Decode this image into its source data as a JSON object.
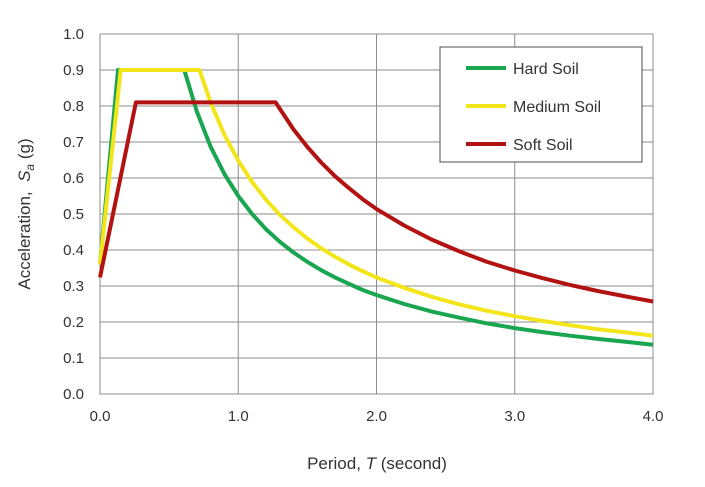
{
  "chart_data": {
    "type": "line",
    "xlabel": {
      "prefix": "Period, ",
      "symbol": "T",
      "suffix": " (second)"
    },
    "ylabel": {
      "prefix": "Acceleration,  ",
      "symbol": "S",
      "subscript": "a",
      "suffix": " (g)"
    },
    "xlim": [
      0,
      4
    ],
    "ylim": [
      0,
      1
    ],
    "x_ticks": [
      0,
      1,
      2,
      3,
      4
    ],
    "x_tick_labels": [
      "0.0",
      "1.0",
      "2.0",
      "3.0",
      "4.0"
    ],
    "y_ticks": [
      0,
      0.1,
      0.2,
      0.3,
      0.4,
      0.5,
      0.6,
      0.7,
      0.8,
      0.9,
      1.0
    ],
    "y_tick_labels": [
      "0.0",
      "0.1",
      "0.2",
      "0.3",
      "0.4",
      "0.5",
      "0.6",
      "0.7",
      "0.8",
      "0.9",
      "1.0"
    ],
    "grid": true,
    "legend_position": "top-right",
    "series": [
      {
        "name": "Hard Soil",
        "color": "#1aa650",
        "x": [
          0,
          0.13,
          0.61,
          0.7,
          0.8,
          0.9,
          1.0,
          1.1,
          1.2,
          1.3,
          1.4,
          1.5,
          1.6,
          1.7,
          1.8,
          1.9,
          2.0,
          2.2,
          2.4,
          2.6,
          2.8,
          3.0,
          3.2,
          3.4,
          3.6,
          3.8,
          4.0
        ],
        "y": [
          0.36,
          0.9,
          0.9,
          0.785,
          0.687,
          0.611,
          0.55,
          0.5,
          0.458,
          0.423,
          0.393,
          0.367,
          0.344,
          0.324,
          0.306,
          0.289,
          0.275,
          0.25,
          0.229,
          0.212,
          0.196,
          0.183,
          0.172,
          0.162,
          0.153,
          0.145,
          0.137
        ]
      },
      {
        "name": "Medium Soil",
        "color": "#f2e61a",
        "x": [
          0,
          0.15,
          0.72,
          0.8,
          0.9,
          1.0,
          1.1,
          1.2,
          1.3,
          1.4,
          1.5,
          1.6,
          1.7,
          1.8,
          1.9,
          2.0,
          2.2,
          2.4,
          2.6,
          2.8,
          3.0,
          3.2,
          3.4,
          3.6,
          3.8,
          4.0
        ],
        "y": [
          0.36,
          0.9,
          0.9,
          0.81,
          0.72,
          0.648,
          0.589,
          0.54,
          0.498,
          0.463,
          0.432,
          0.405,
          0.381,
          0.36,
          0.341,
          0.324,
          0.295,
          0.27,
          0.249,
          0.231,
          0.216,
          0.203,
          0.191,
          0.18,
          0.171,
          0.162
        ]
      },
      {
        "name": "Soft Soil",
        "color": "#b31212",
        "x": [
          0,
          0.26,
          1.27,
          1.4,
          1.5,
          1.6,
          1.7,
          1.8,
          1.9,
          2.0,
          2.2,
          2.4,
          2.6,
          2.8,
          3.0,
          3.2,
          3.4,
          3.6,
          3.8,
          4.0
        ],
        "y": [
          0.324,
          0.81,
          0.81,
          0.735,
          0.686,
          0.643,
          0.605,
          0.572,
          0.541,
          0.514,
          0.468,
          0.429,
          0.396,
          0.367,
          0.343,
          0.322,
          0.303,
          0.286,
          0.271,
          0.257
        ]
      }
    ]
  }
}
